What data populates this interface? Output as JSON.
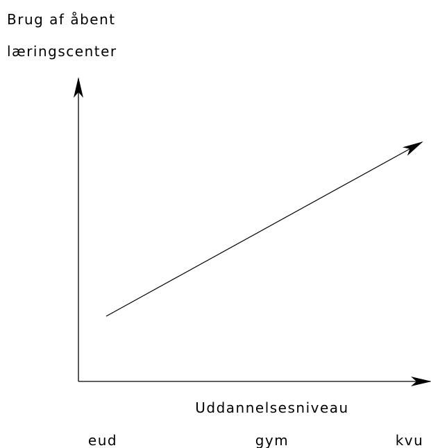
{
  "y_axis": {
    "label_lines": [
      "Brug af åbent",
      "læringscenter"
    ]
  },
  "x_axis": {
    "label": "Uddannelsesniveau",
    "categories": [
      "eud",
      "gym",
      "kvu"
    ]
  }
}
